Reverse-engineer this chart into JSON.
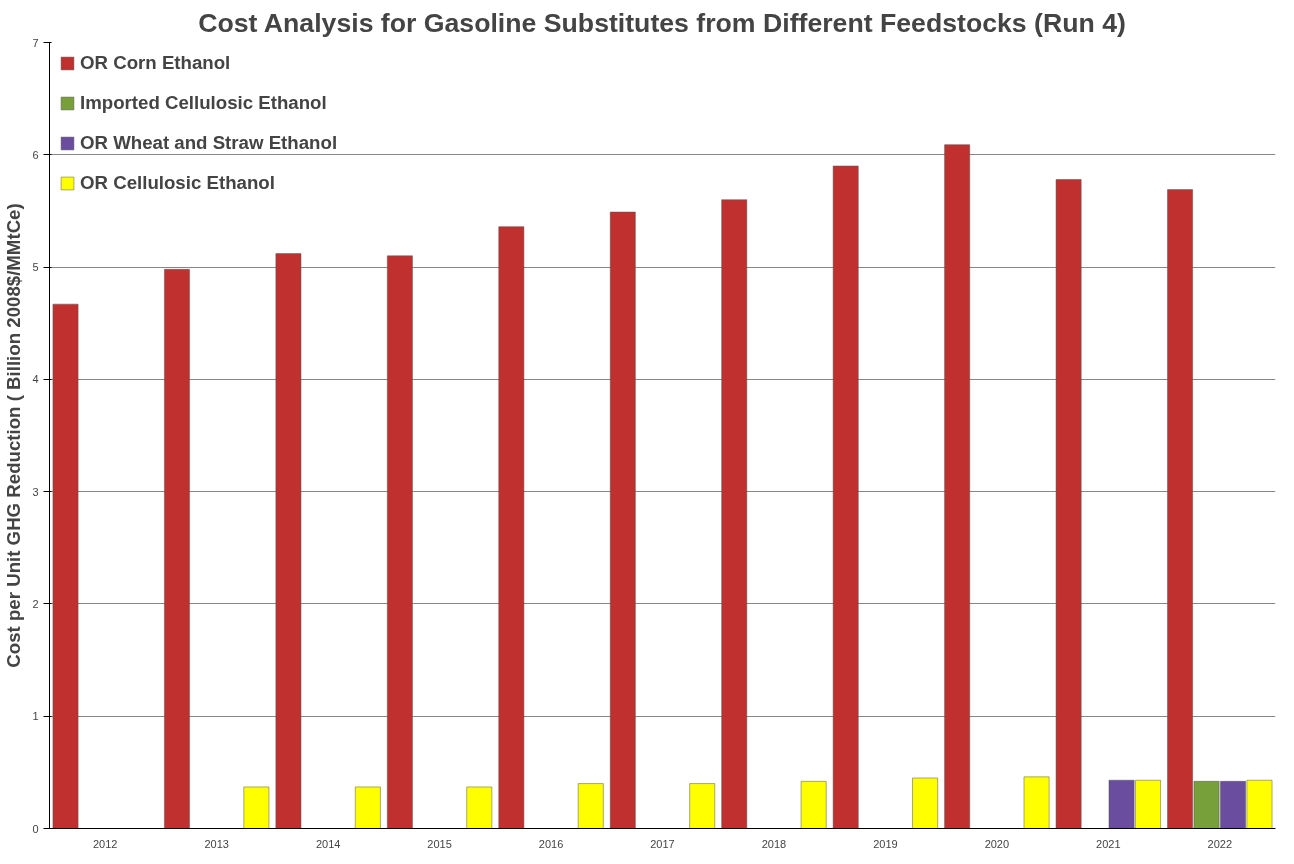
{
  "chart_data": {
    "type": "bar",
    "title": "Cost Analysis for Gasoline Substitutes from Different Feedstocks (Run 4)",
    "ylabel": "Cost per Unit GHG Reduction ( Billion 2008$/MMtCe)",
    "categories": [
      "2012",
      "2013",
      "2014",
      "2015",
      "2016",
      "2017",
      "2018",
      "2019",
      "2020",
      "2021",
      "2022"
    ],
    "series": [
      {
        "name": "OR Corn Ethanol",
        "color": "#c0302e",
        "values": [
          4.67,
          4.98,
          5.12,
          5.1,
          5.36,
          5.49,
          5.6,
          5.9,
          6.09,
          5.78,
          5.69
        ]
      },
      {
        "name": "Imported Cellulosic Ethanol",
        "color": "#77a03a",
        "values": [
          null,
          null,
          null,
          null,
          null,
          null,
          null,
          null,
          null,
          null,
          0.42
        ]
      },
      {
        "name": "OR Wheat and Straw Ethanol",
        "color": "#6a4d9e",
        "values": [
          null,
          null,
          null,
          null,
          null,
          null,
          null,
          null,
          null,
          0.43,
          0.42
        ]
      },
      {
        "name": "OR Cellulosic Ethanol",
        "color": "#ffff00",
        "values": [
          null,
          0.37,
          0.37,
          0.37,
          0.4,
          0.4,
          0.42,
          0.45,
          0.46,
          0.43,
          0.43
        ]
      }
    ],
    "ylim": [
      0,
      7
    ],
    "yticks": [
      0,
      1,
      2,
      3,
      4,
      5,
      6,
      7
    ],
    "grid": "y",
    "legend": "top left"
  }
}
